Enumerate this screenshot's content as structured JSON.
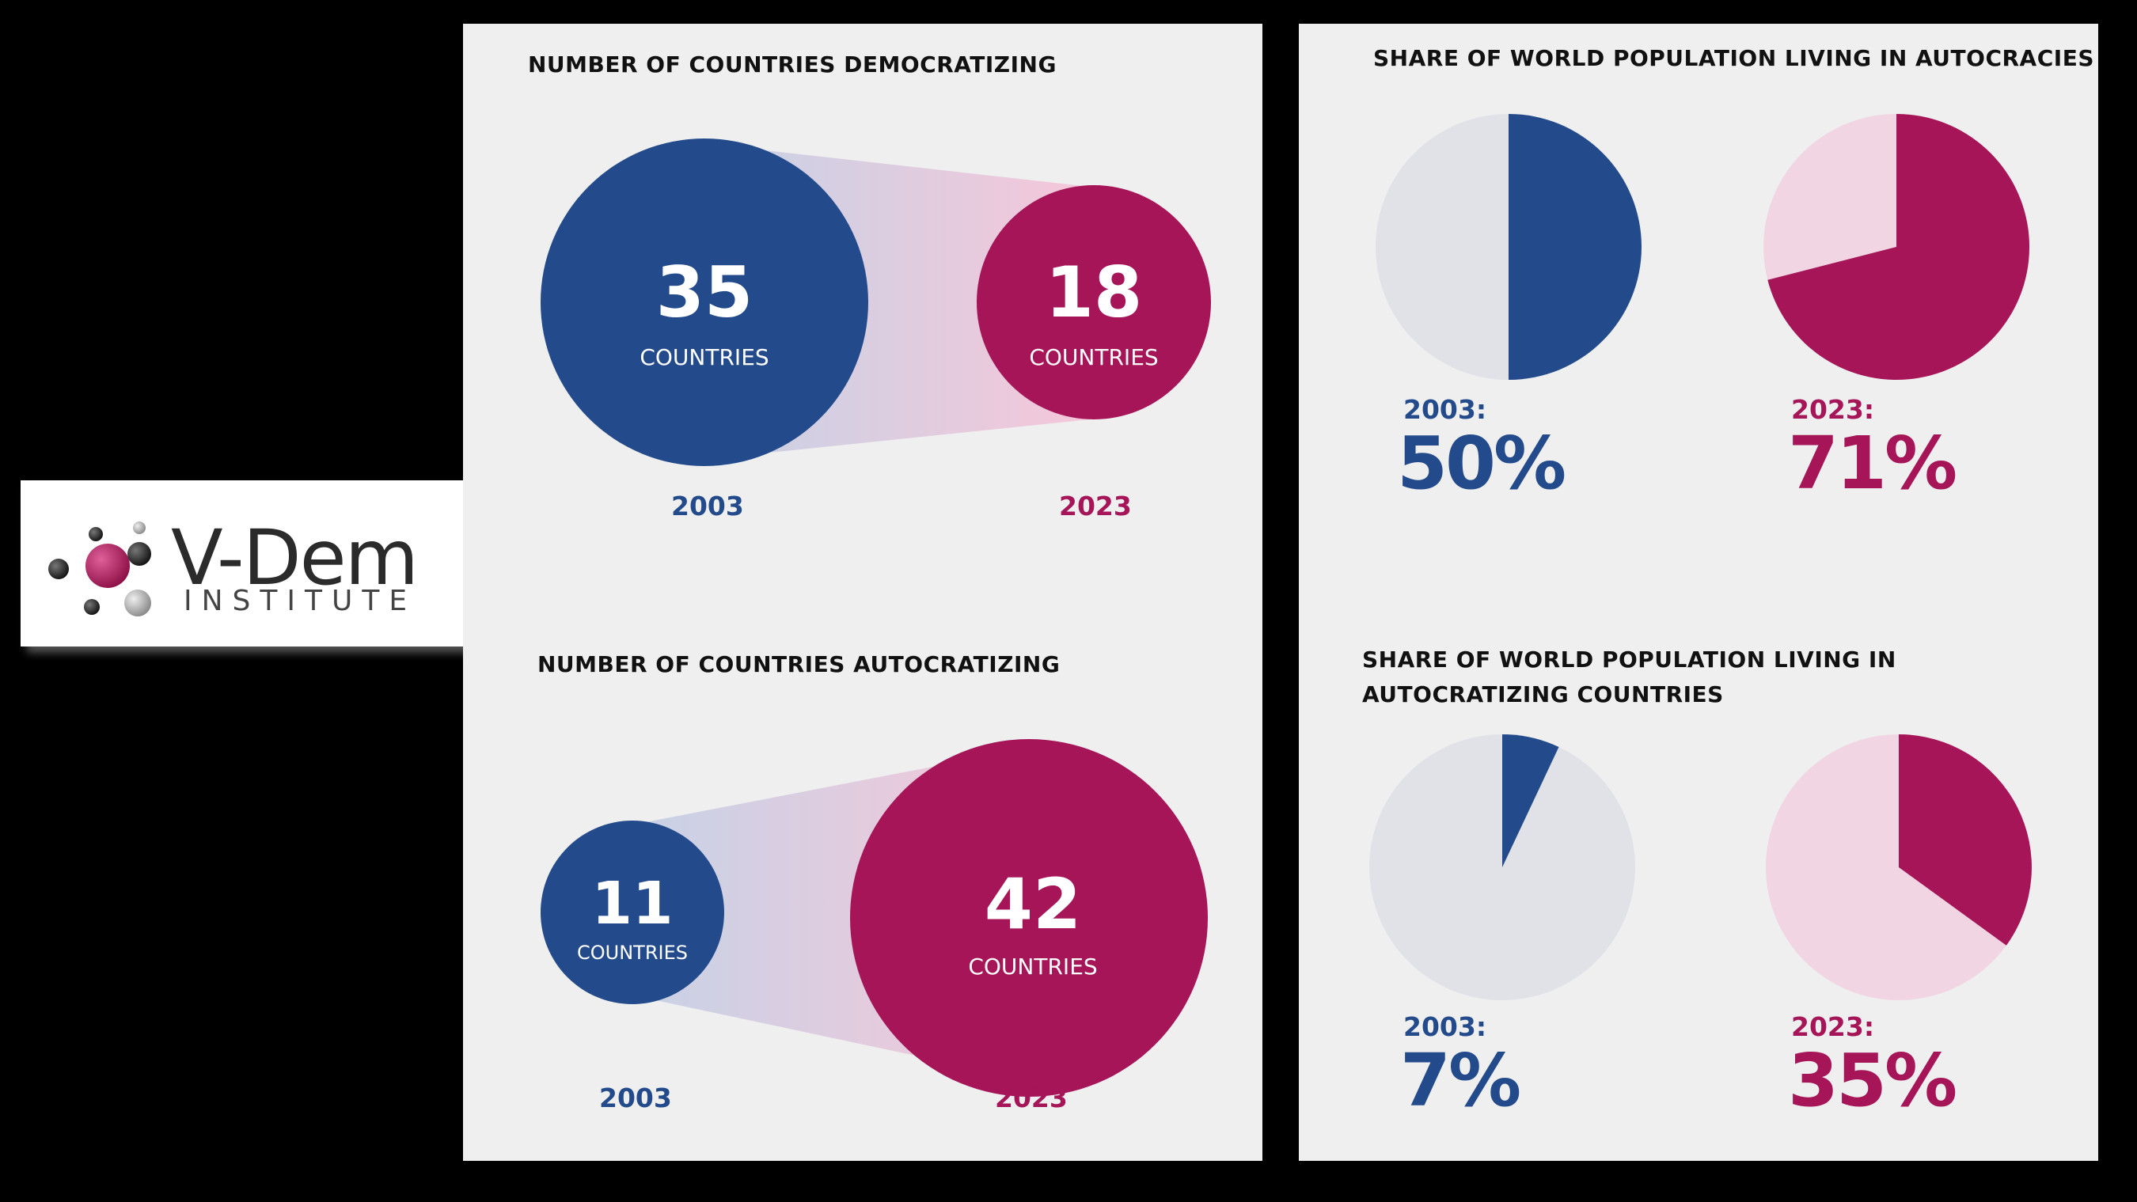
{
  "logo": {
    "name": "V-Dem",
    "subtitle": "INSTITUTE"
  },
  "colors": {
    "blue": "#234b8c",
    "magenta": "#a51558",
    "panel": "#efefef",
    "globe_light": "#e0e2e8"
  },
  "chart_data": [
    {
      "type": "bubble",
      "title": "NUMBER OF COUNTRIES DEMOCRATIZING",
      "unit": "COUNTRIES",
      "categories": [
        "2003",
        "2023"
      ],
      "values": [
        35,
        18
      ]
    },
    {
      "type": "bubble",
      "title": "NUMBER OF COUNTRIES AUTOCRATIZING",
      "unit": "COUNTRIES",
      "categories": [
        "2003",
        "2023"
      ],
      "values": [
        11,
        42
      ]
    },
    {
      "type": "pie",
      "title": "SHARE OF WORLD POPULATION LIVING IN AUTOCRACIES",
      "categories": [
        "2003:",
        "2023:"
      ],
      "values": [
        50,
        71
      ],
      "labels": [
        "50%",
        "71%"
      ]
    },
    {
      "type": "pie",
      "title": "SHARE OF WORLD POPULATION LIVING IN AUTOCRATIZING COUNTRIES",
      "categories": [
        "2003:",
        "2023:"
      ],
      "values": [
        7,
        35
      ],
      "labels": [
        "7%",
        "35%"
      ]
    }
  ]
}
